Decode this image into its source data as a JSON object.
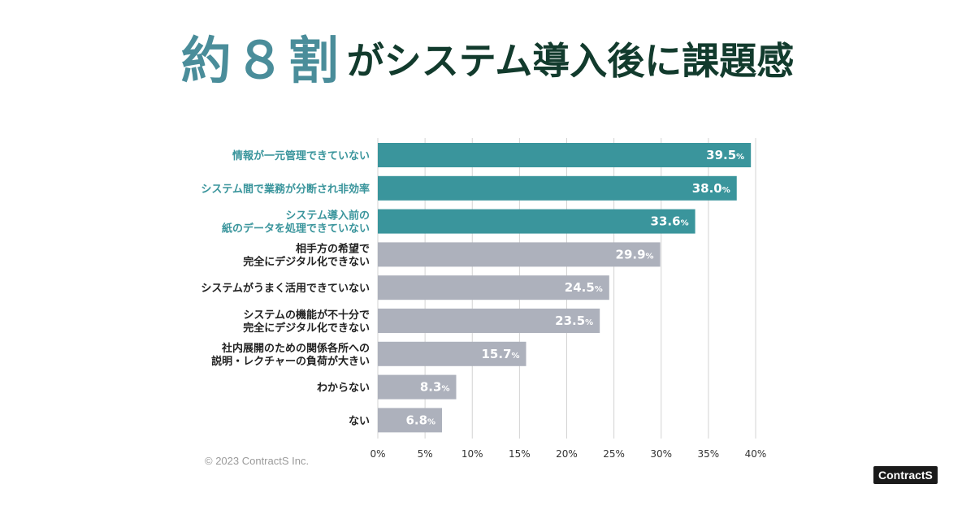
{
  "headline": {
    "accent": "約８割",
    "rest": "がシステム導入後に課題感"
  },
  "copyright": "© 2023 ContractS Inc.",
  "logo": "ContractS",
  "colors": {
    "highlight": "#3a959c",
    "normal": "#adb1bc",
    "highlight_label": "#3a959c",
    "normal_label": "#222222",
    "grid": "#d3d3d3"
  },
  "chart_data": {
    "type": "bar",
    "orientation": "horizontal",
    "title": "",
    "categories": [
      [
        "情報が一元管理できていない"
      ],
      [
        "システム間で業務が分断され非効率"
      ],
      [
        "システム導入前の",
        "紙のデータを処理できていない"
      ],
      [
        "相手方の希望で",
        "完全にデジタル化できない"
      ],
      [
        "システムがうまく活用できていない"
      ],
      [
        "システムの機能が不十分で",
        "完全にデジタル化できない"
      ],
      [
        "社内展開のための関係各所への",
        "説明・レクチャーの負荷が大きい"
      ],
      [
        "わからない"
      ],
      [
        "ない"
      ]
    ],
    "values": [
      39.5,
      38.0,
      33.6,
      29.9,
      24.5,
      23.5,
      15.7,
      8.3,
      6.8
    ],
    "value_labels": [
      "39.5",
      "38.0",
      "33.6",
      "29.9",
      "24.5",
      "23.5",
      "15.7",
      "8.3",
      "6.8"
    ],
    "value_suffix": "%",
    "highlighted": [
      true,
      true,
      true,
      false,
      false,
      false,
      false,
      false,
      false
    ],
    "xlim": [
      0,
      40
    ],
    "xticks": [
      "0%",
      "5%",
      "10%",
      "15%",
      "20%",
      "25%",
      "30%",
      "35%",
      "40%"
    ],
    "grid": true,
    "xlabel": "",
    "ylabel": ""
  }
}
